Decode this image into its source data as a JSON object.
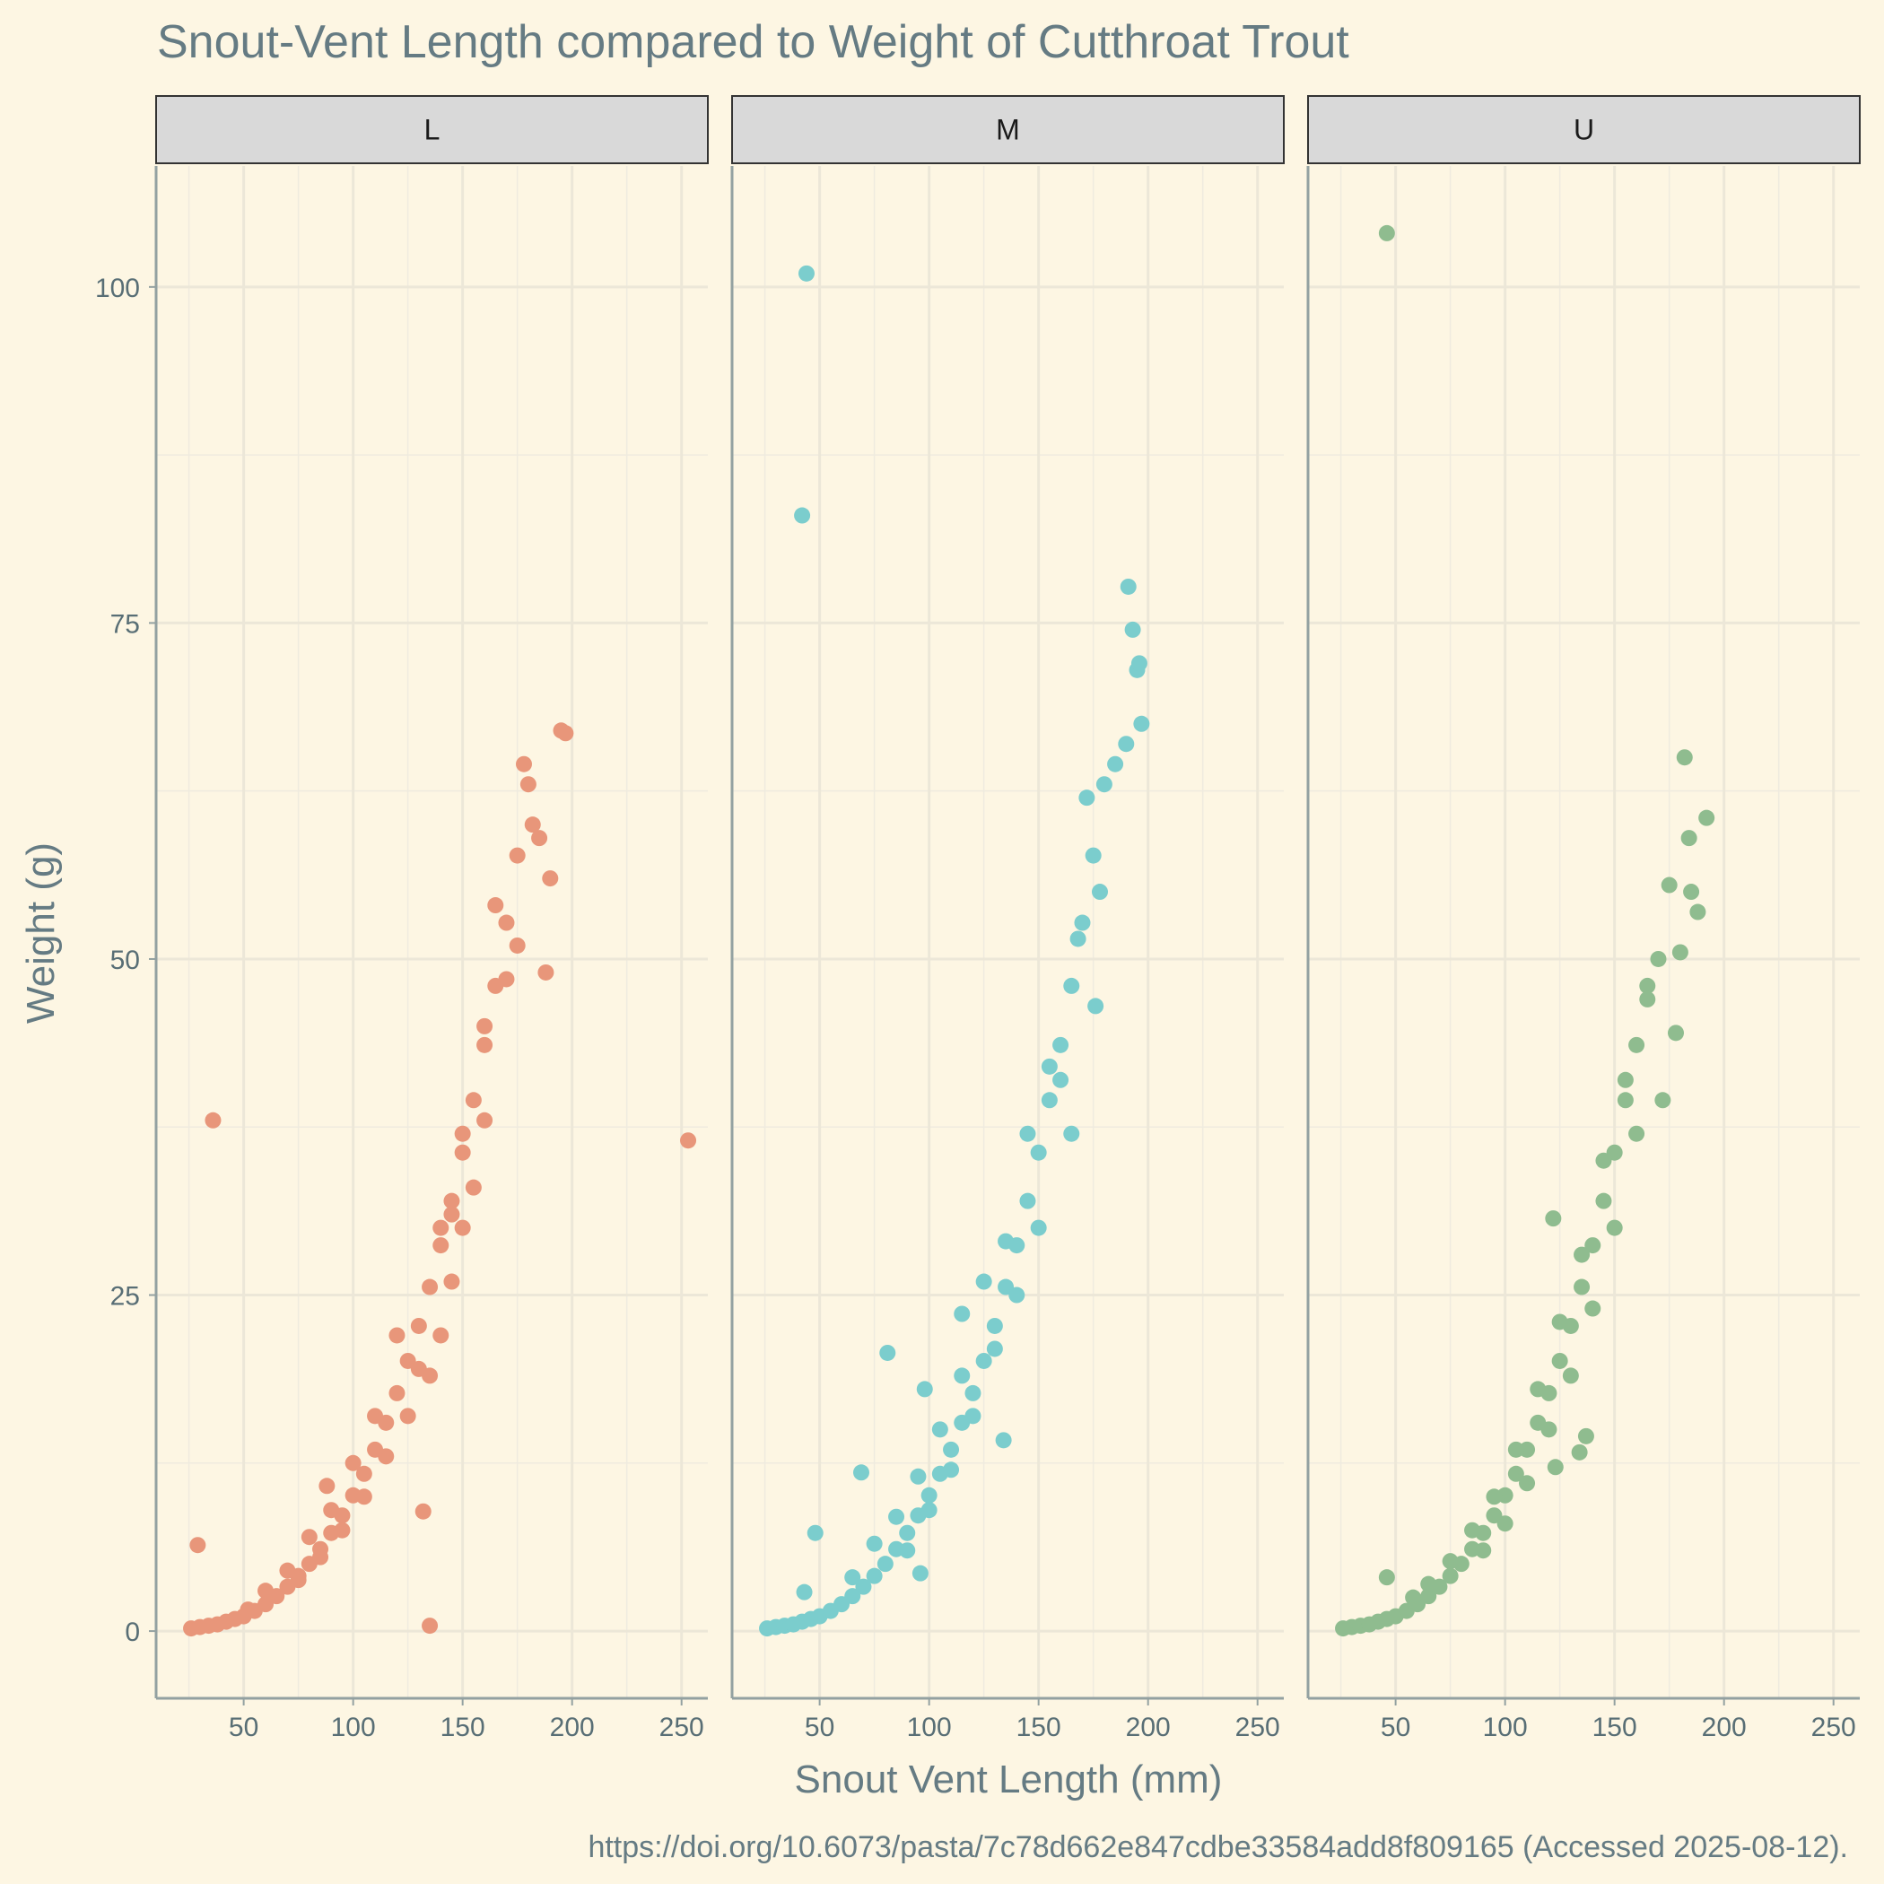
{
  "chart_data": {
    "type": "scatter",
    "title": "Snout-Vent Length compared to Weight of Cutthroat Trout",
    "xlabel": "Snout Vent Length (mm)",
    "ylabel": "Weight (g)",
    "caption": "https://doi.org/10.6073/pasta/7c78d662e847cdbe33584add8f809165 (Accessed 2025-08-12).",
    "xlim": [
      10,
      262
    ],
    "ylim": [
      -5,
      109
    ],
    "x_ticks": [
      50,
      100,
      150,
      200,
      250
    ],
    "y_ticks": [
      0,
      25,
      50,
      75,
      100
    ],
    "grid": true,
    "facets": [
      {
        "name": "L",
        "color": "#e8967a",
        "points": [
          [
            26,
            0.2
          ],
          [
            30,
            0.3
          ],
          [
            34,
            0.4
          ],
          [
            38,
            0.5
          ],
          [
            42,
            0.7
          ],
          [
            46,
            0.9
          ],
          [
            50,
            1.1
          ],
          [
            55,
            1.5
          ],
          [
            60,
            2.0
          ],
          [
            65,
            2.6
          ],
          [
            70,
            3.3
          ],
          [
            75,
            4.1
          ],
          [
            80,
            5.0
          ],
          [
            85,
            6.1
          ],
          [
            90,
            7.3
          ],
          [
            95,
            8.6
          ],
          [
            100,
            10.1
          ],
          [
            105,
            11.7
          ],
          [
            110,
            13.5
          ],
          [
            115,
            15.5
          ],
          [
            120,
            17.7
          ],
          [
            125,
            20.1
          ],
          [
            130,
            22.7
          ],
          [
            135,
            25.6
          ],
          [
            140,
            28.7
          ],
          [
            145,
            32.0
          ],
          [
            150,
            35.6
          ],
          [
            155,
            39.5
          ],
          [
            160,
            43.6
          ],
          [
            165,
            48.0
          ],
          [
            170,
            52.7
          ],
          [
            175,
            57.7
          ],
          [
            180,
            63.0
          ],
          [
            185,
            59.0
          ],
          [
            190,
            56.0
          ],
          [
            195,
            67.0
          ],
          [
            197,
            66.8
          ],
          [
            178,
            64.5
          ],
          [
            170,
            48.5
          ],
          [
            165,
            54.0
          ],
          [
            160,
            38.0
          ],
          [
            155,
            33.0
          ],
          [
            150,
            30.0
          ],
          [
            145,
            26.0
          ],
          [
            140,
            22.0
          ],
          [
            135,
            19.0
          ],
          [
            125,
            16.0
          ],
          [
            115,
            13.0
          ],
          [
            105,
            10.0
          ],
          [
            95,
            7.5
          ],
          [
            85,
            5.5
          ],
          [
            75,
            3.8
          ],
          [
            36,
            38.0
          ],
          [
            29,
            6.4
          ],
          [
            253,
            36.5
          ],
          [
            135,
            0.4
          ],
          [
            132,
            8.9
          ],
          [
            88,
            10.8
          ],
          [
            160,
            45.0
          ],
          [
            175,
            51.0
          ],
          [
            182,
            60.0
          ],
          [
            188,
            49.0
          ],
          [
            150,
            37.0
          ],
          [
            145,
            31.0
          ],
          [
            140,
            30.0
          ],
          [
            130,
            19.5
          ],
          [
            120,
            22.0
          ],
          [
            110,
            16.0
          ],
          [
            100,
            12.5
          ],
          [
            90,
            9.0
          ],
          [
            80,
            7.0
          ],
          [
            70,
            4.5
          ],
          [
            60,
            3.0
          ],
          [
            52,
            1.6
          ]
        ]
      },
      {
        "name": "M",
        "color": "#7bcdcd",
        "points": [
          [
            26,
            0.2
          ],
          [
            30,
            0.3
          ],
          [
            34,
            0.4
          ],
          [
            38,
            0.5
          ],
          [
            42,
            0.7
          ],
          [
            46,
            0.9
          ],
          [
            50,
            1.1
          ],
          [
            55,
            1.5
          ],
          [
            60,
            2.0
          ],
          [
            65,
            2.6
          ],
          [
            70,
            3.3
          ],
          [
            75,
            4.1
          ],
          [
            80,
            5.0
          ],
          [
            85,
            6.1
          ],
          [
            90,
            7.3
          ],
          [
            95,
            8.6
          ],
          [
            100,
            10.1
          ],
          [
            105,
            11.7
          ],
          [
            110,
            13.5
          ],
          [
            115,
            15.5
          ],
          [
            120,
            17.7
          ],
          [
            125,
            20.1
          ],
          [
            130,
            22.7
          ],
          [
            135,
            25.6
          ],
          [
            140,
            28.7
          ],
          [
            145,
            32.0
          ],
          [
            150,
            35.6
          ],
          [
            155,
            39.5
          ],
          [
            160,
            43.6
          ],
          [
            165,
            48.0
          ],
          [
            170,
            52.7
          ],
          [
            175,
            57.7
          ],
          [
            180,
            63.0
          ],
          [
            185,
            64.5
          ],
          [
            190,
            66.0
          ],
          [
            193,
            74.5
          ],
          [
            195,
            71.5
          ],
          [
            196,
            72.0
          ],
          [
            197,
            67.5
          ],
          [
            191,
            77.7
          ],
          [
            178,
            55.0
          ],
          [
            172,
            62.0
          ],
          [
            165,
            37.0
          ],
          [
            160,
            41.0
          ],
          [
            150,
            30.0
          ],
          [
            140,
            25.0
          ],
          [
            130,
            21.0
          ],
          [
            120,
            16.0
          ],
          [
            110,
            12.0
          ],
          [
            100,
            9.0
          ],
          [
            90,
            6.0
          ],
          [
            44,
            101.0
          ],
          [
            42,
            83.0
          ],
          [
            81,
            20.7
          ],
          [
            98,
            18.0
          ],
          [
            115,
            23.6
          ],
          [
            134,
            14.2
          ],
          [
            69,
            11.8
          ],
          [
            48,
            7.3
          ],
          [
            43,
            2.9
          ],
          [
            96,
            4.3
          ],
          [
            176,
            46.5
          ],
          [
            168,
            51.5
          ],
          [
            155,
            42.0
          ],
          [
            145,
            37.0
          ],
          [
            135,
            29.0
          ],
          [
            125,
            26.0
          ],
          [
            115,
            19.0
          ],
          [
            105,
            15.0
          ],
          [
            95,
            11.5
          ],
          [
            85,
            8.5
          ],
          [
            75,
            6.5
          ],
          [
            65,
            4.0
          ]
        ]
      },
      {
        "name": "U",
        "color": "#8fbc8f",
        "points": [
          [
            26,
            0.2
          ],
          [
            30,
            0.3
          ],
          [
            34,
            0.4
          ],
          [
            38,
            0.5
          ],
          [
            42,
            0.7
          ],
          [
            46,
            0.9
          ],
          [
            50,
            1.1
          ],
          [
            55,
            1.5
          ],
          [
            60,
            2.0
          ],
          [
            65,
            2.6
          ],
          [
            70,
            3.3
          ],
          [
            75,
            4.1
          ],
          [
            80,
            5.0
          ],
          [
            85,
            6.1
          ],
          [
            90,
            7.3
          ],
          [
            95,
            8.6
          ],
          [
            100,
            10.1
          ],
          [
            105,
            11.7
          ],
          [
            110,
            13.5
          ],
          [
            115,
            15.5
          ],
          [
            120,
            17.7
          ],
          [
            125,
            20.1
          ],
          [
            130,
            22.7
          ],
          [
            135,
            25.6
          ],
          [
            140,
            28.7
          ],
          [
            145,
            32.0
          ],
          [
            150,
            35.6
          ],
          [
            155,
            39.5
          ],
          [
            160,
            43.6
          ],
          [
            165,
            48.0
          ],
          [
            170,
            50.0
          ],
          [
            175,
            55.5
          ],
          [
            180,
            50.5
          ],
          [
            182,
            65.0
          ],
          [
            184,
            59.0
          ],
          [
            185,
            55.0
          ],
          [
            188,
            53.5
          ],
          [
            192,
            60.5
          ],
          [
            178,
            44.5
          ],
          [
            172,
            39.5
          ],
          [
            160,
            37.0
          ],
          [
            150,
            30.0
          ],
          [
            140,
            24.0
          ],
          [
            130,
            19.0
          ],
          [
            120,
            15.0
          ],
          [
            110,
            11.0
          ],
          [
            100,
            8.0
          ],
          [
            90,
            6.0
          ],
          [
            46,
            104.0
          ],
          [
            46,
            4.0
          ],
          [
            122,
            30.7
          ],
          [
            137,
            14.5
          ],
          [
            123,
            12.2
          ],
          [
            134,
            13.3
          ],
          [
            165,
            47.0
          ],
          [
            155,
            41.0
          ],
          [
            145,
            35.0
          ],
          [
            135,
            28.0
          ],
          [
            125,
            23.0
          ],
          [
            115,
            18.0
          ],
          [
            105,
            13.5
          ],
          [
            95,
            10.0
          ],
          [
            85,
            7.5
          ],
          [
            75,
            5.2
          ],
          [
            65,
            3.5
          ],
          [
            58,
            2.5
          ]
        ]
      }
    ]
  }
}
